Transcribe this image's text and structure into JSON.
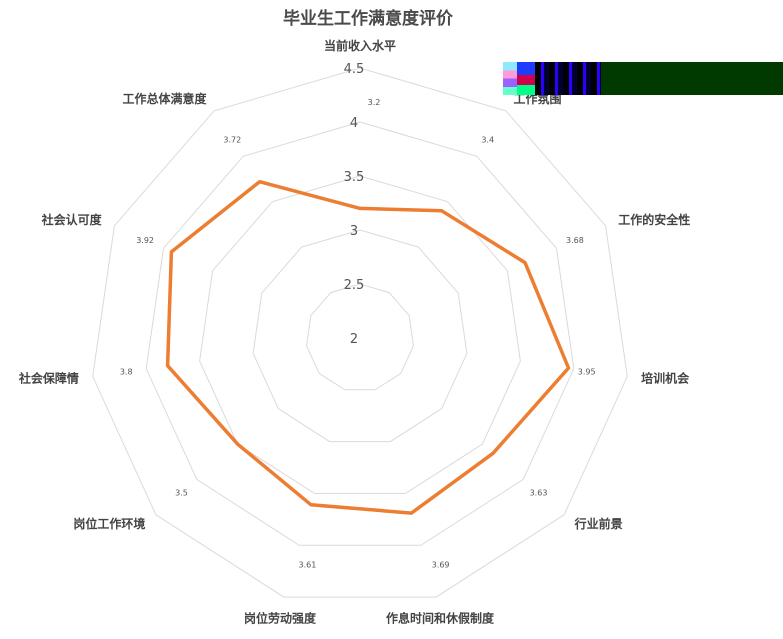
{
  "chart_data": {
    "type": "radar",
    "title": "毕业生工作满意度评价",
    "categories": [
      "当前收入水平",
      "工作氛围",
      "工作的安全性",
      "培训机会",
      "行业前景",
      "作息时间和休假制度",
      "岗位劳动强度",
      "岗位工作环境",
      "社会保障情况",
      "社会认可度",
      "工作总体满意度"
    ],
    "category_labels": [
      "当前收入水平",
      "工作氛围",
      "工作的安全性",
      "培训机会",
      "行业前景",
      "作息时间和休假制度",
      "岗位劳动强度",
      "岗位工作环境",
      "社会保障情",
      "社会认可度",
      "工作总体满意度"
    ],
    "values": [
      3.2,
      3.4,
      3.68,
      3.95,
      3.63,
      3.69,
      3.61,
      3.5,
      3.8,
      3.92,
      3.72
    ],
    "value_labels": [
      "3.2",
      "3.4",
      "3.68",
      "3.95",
      "3.63",
      "3.69",
      "3.61",
      "3.5",
      "3.8",
      "3.92",
      "3.72"
    ],
    "rlim": [
      2,
      4.5
    ],
    "ticks": [
      "2",
      "2.5",
      "3",
      "3.5",
      "4",
      "4.5"
    ],
    "tick_values": [
      2,
      2.5,
      3,
      3.5,
      4,
      4.5
    ],
    "series_color": "#ED7D31",
    "grid_color": "#DADADA",
    "legend": "none"
  }
}
